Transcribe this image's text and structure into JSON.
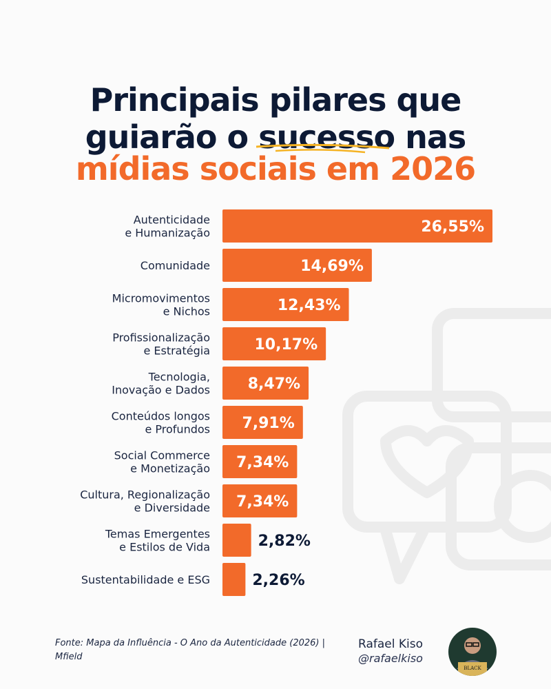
{
  "title": {
    "line1": "Principais pilares que",
    "line2": "guiarão o sucesso nas",
    "line3": "mídias sociais em 2026",
    "highlight_word": "sucesso"
  },
  "colors": {
    "bar": "#f26a2a",
    "title_dark": "#0d1a35",
    "accent": "#f26a2a",
    "underline": "#f5b324",
    "label_dark": "#0d1a35"
  },
  "chart_data": {
    "type": "bar",
    "orientation": "horizontal",
    "title": "Principais pilares que guiarão o sucesso nas mídias sociais em 2026",
    "categories": [
      [
        "Autenticidade",
        "e Humanização"
      ],
      [
        "Comunidade"
      ],
      [
        "Micromovimentos",
        "e Nichos"
      ],
      [
        "Profissionalização",
        "e Estratégia"
      ],
      [
        "Tecnologia,",
        "Inovação e Dados"
      ],
      [
        "Conteúdos longos",
        "e Profundos"
      ],
      [
        "Social Commerce",
        "e Monetização"
      ],
      [
        "Cultura, Regionalização",
        "e Diversidade"
      ],
      [
        "Temas Emergentes",
        "e Estilos de Vida"
      ],
      [
        "Sustentabilidade e ESG"
      ]
    ],
    "values": [
      26.55,
      14.69,
      12.43,
      10.17,
      8.47,
      7.91,
      7.34,
      7.34,
      2.82,
      2.26
    ],
    "data_labels": [
      "26,55%",
      "14,69%",
      "12,43%",
      "10,17%",
      "8,47%",
      "7,91%",
      "7,34%",
      "7,34%",
      "2,82%",
      "2,26%"
    ],
    "unit": "%",
    "grid": false
  },
  "footer": {
    "source_line1": "Fonte: Mapa da Influência - O Ano da Autenticidade (2026) |",
    "source_line2": "Mfield",
    "author_name": "Rafael Kiso",
    "author_handle": "@rafaelkiso",
    "avatar_badge": "BLACK"
  }
}
